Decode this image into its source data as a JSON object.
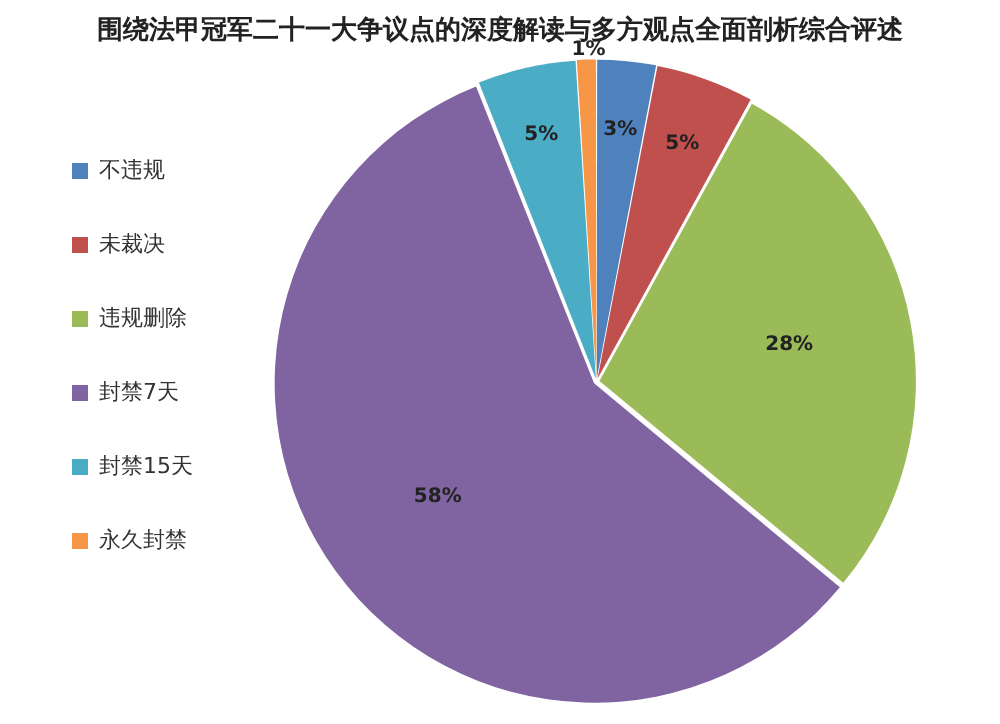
{
  "chart_data": {
    "type": "pie",
    "title": "围绕法甲冠军二十一大争议点的深度解读与多方观点全面剖析综合评述",
    "categories": [
      "不违规",
      "未裁决",
      "违规删除",
      "封禁7天",
      "封禁15天",
      "永久封禁"
    ],
    "values": [
      3,
      5,
      28,
      58,
      5,
      1
    ],
    "colors": [
      "#4f81bd",
      "#c0504d",
      "#9bbb59",
      "#8064a2",
      "#4bacc6",
      "#f79646"
    ],
    "value_labels": [
      "3%",
      "5%",
      "28%",
      "58%",
      "5%",
      "1%"
    ],
    "legend": "left"
  }
}
